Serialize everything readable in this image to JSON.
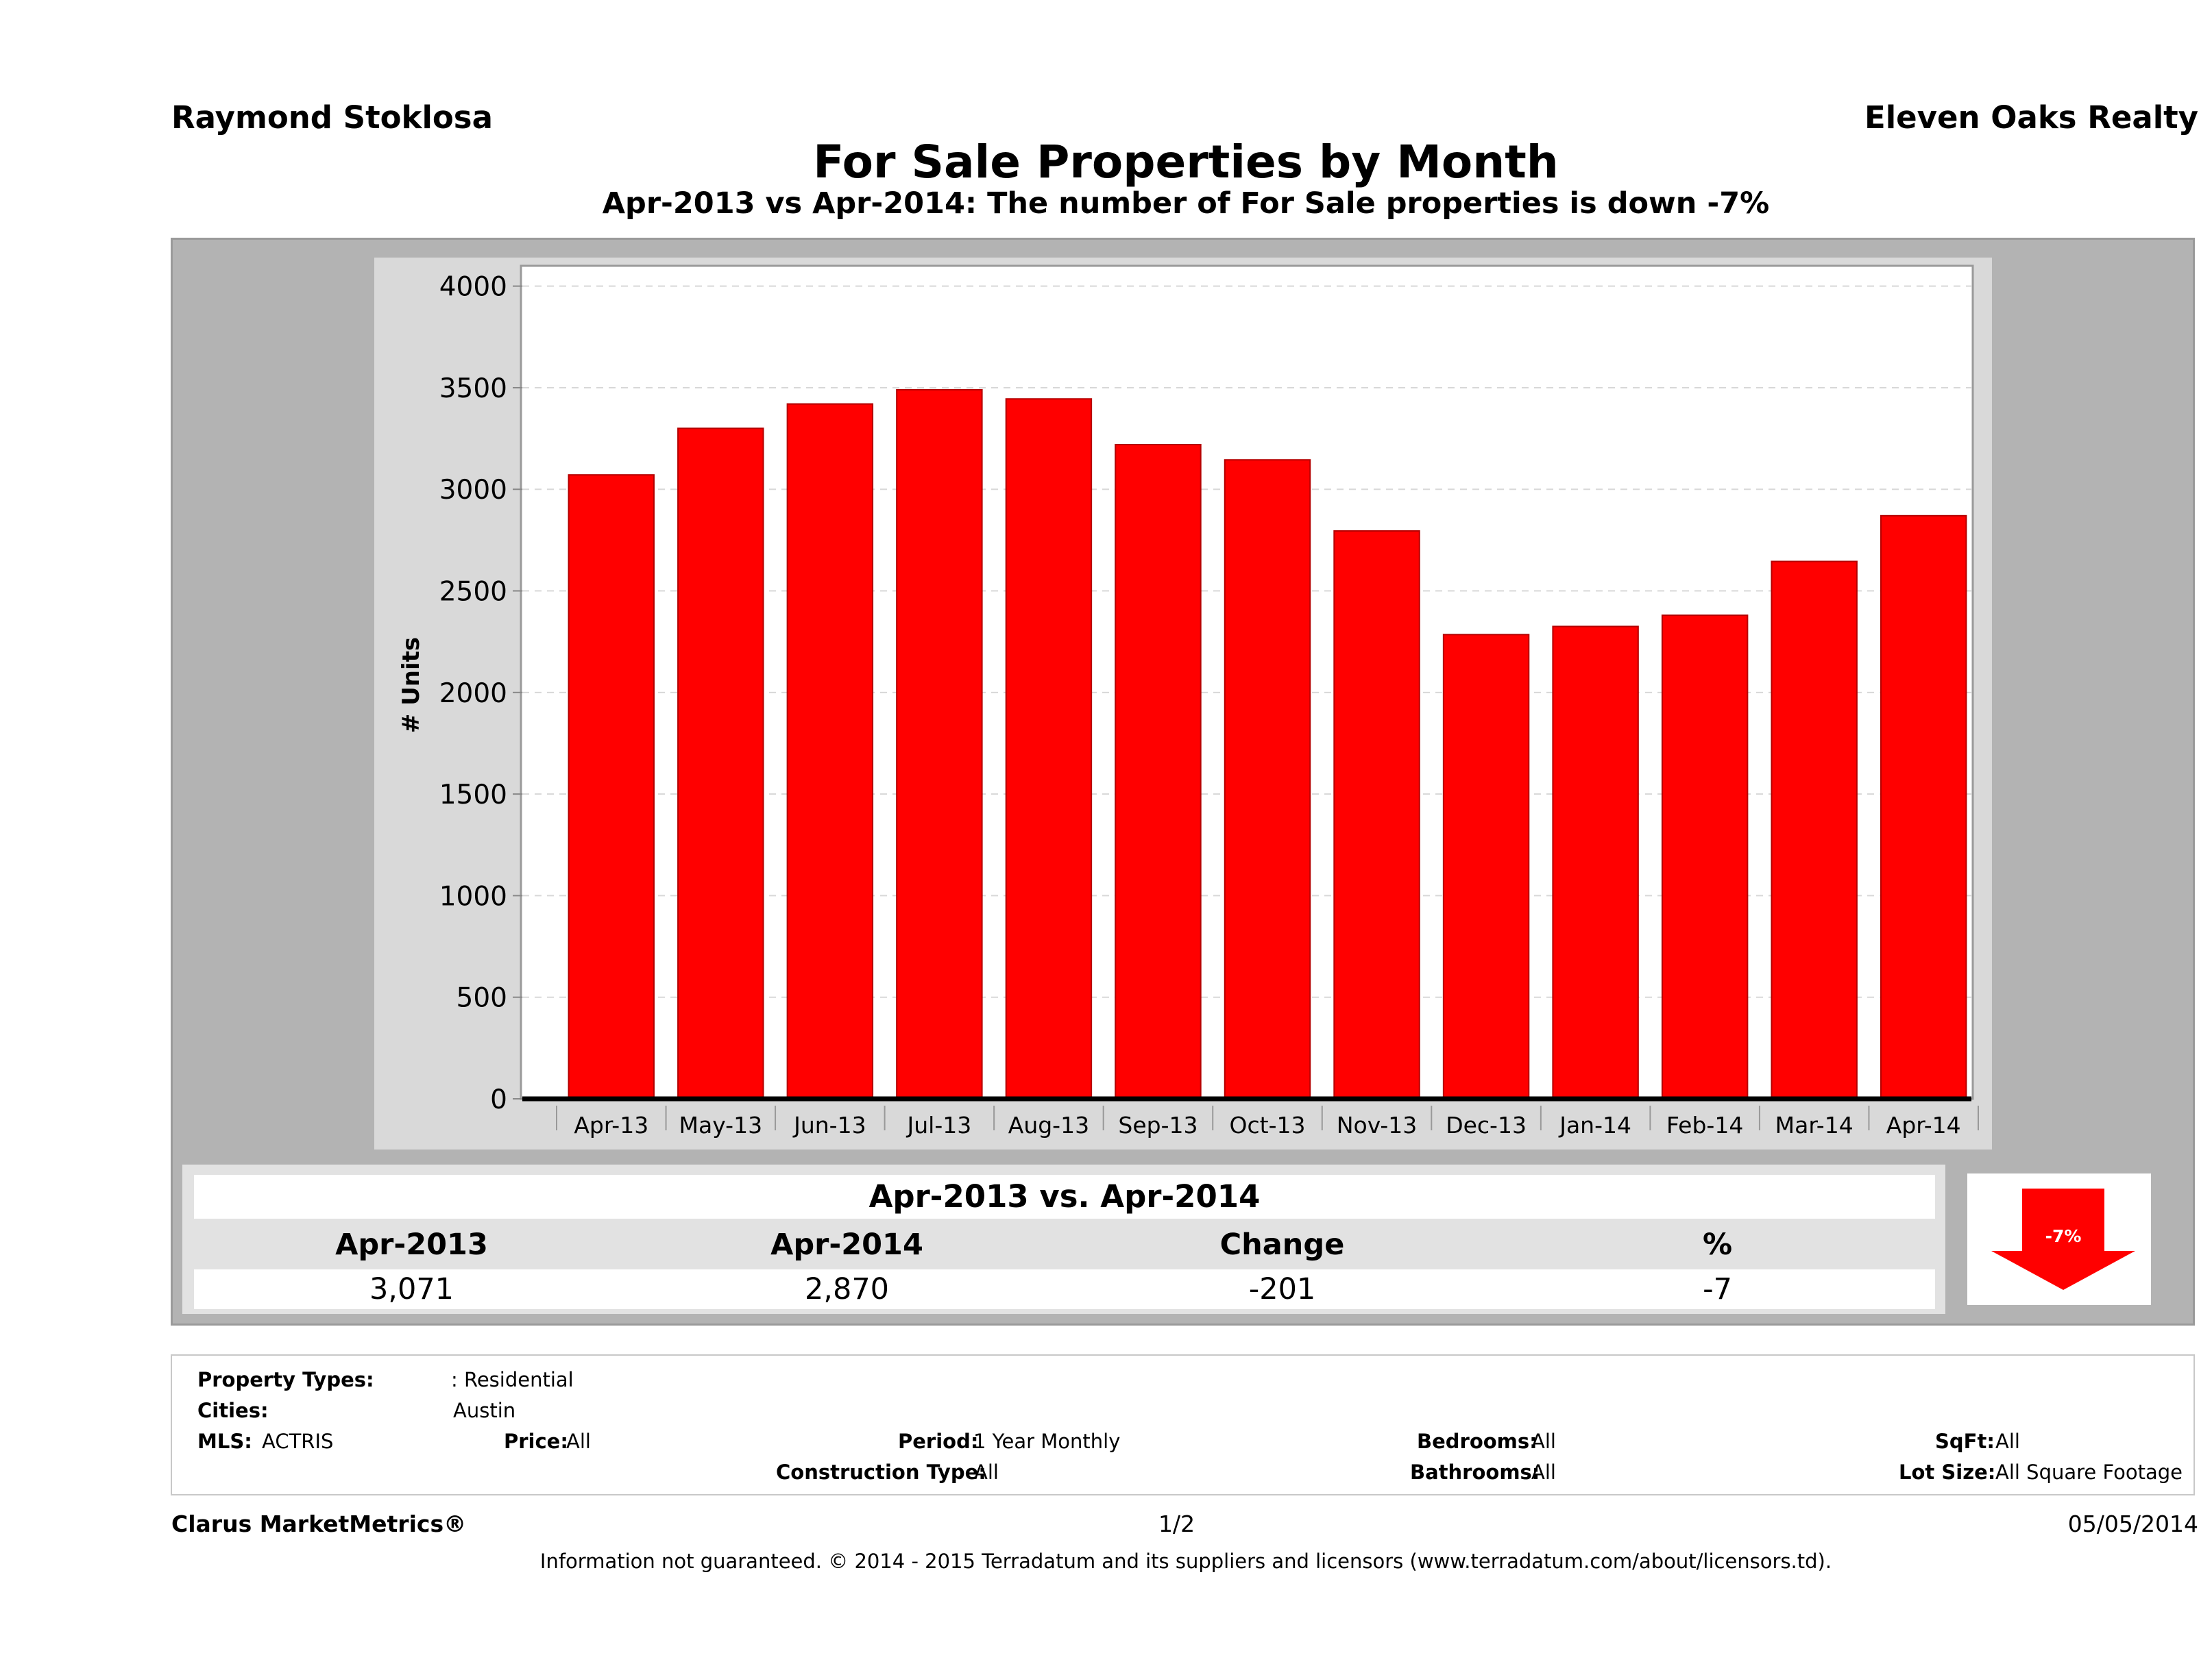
{
  "header": {
    "agent": "Raymond Stoklosa",
    "brokerage": "Eleven Oaks Realty",
    "title": "For Sale Properties by Month",
    "subtitle": "Apr-2013 vs Apr-2014: The number of For Sale  properties is down -7%"
  },
  "chart_data": {
    "type": "bar",
    "title": "For Sale Properties by Month",
    "ylabel": "# Units",
    "xlabel": "",
    "categories": [
      "Apr-13",
      "May-13",
      "Jun-13",
      "Jul-13",
      "Aug-13",
      "Sep-13",
      "Oct-13",
      "Nov-13",
      "Dec-13",
      "Jan-14",
      "Feb-14",
      "Mar-14",
      "Apr-14"
    ],
    "values": [
      3071,
      3300,
      3420,
      3490,
      3445,
      3220,
      3145,
      2795,
      2285,
      2325,
      2380,
      2645,
      2870
    ],
    "yticks": [
      "0",
      "500",
      "1000",
      "1500",
      "2000",
      "2500",
      "3000",
      "3500",
      "4000"
    ],
    "ylim": [
      0,
      4100
    ],
    "grid": true,
    "bar_color": "#ff0000"
  },
  "summary": {
    "title": "Apr-2013 vs. Apr-2014",
    "headers": [
      "Apr-2013",
      "Apr-2014",
      "Change",
      "%"
    ],
    "values": [
      "3,071",
      "2,870",
      "-201",
      "-7"
    ],
    "arrow_label": "-7%",
    "arrow_color": "#ff0000"
  },
  "filters": {
    "property_types_label": "Property Types:",
    "property_types_value": ": Residential",
    "cities_label": "Cities:",
    "cities_value": "Austin",
    "mls_label": "MLS:",
    "mls_value": "ACTRIS",
    "price_label": "Price:",
    "price_value": "All",
    "period_label": "Period:",
    "period_value": "1 Year Monthly",
    "construction_label": "Construction Type:",
    "construction_value": "All",
    "bedrooms_label": "Bedrooms:",
    "bedrooms_value": "All",
    "bathrooms_label": "Bathrooms:",
    "bathrooms_value": "All",
    "sqft_label": "SqFt:",
    "sqft_value": "All",
    "lotsize_label": "Lot Size:",
    "lotsize_value": "All Square Footage"
  },
  "footer": {
    "brand": "Clarus MarketMetrics®",
    "page": "1/2",
    "date": "05/05/2014",
    "disclaimer": "Information not guaranteed. © 2014 - 2015 Terradatum and its suppliers and licensors (www.terradatum.com/about/licensors.td)."
  }
}
